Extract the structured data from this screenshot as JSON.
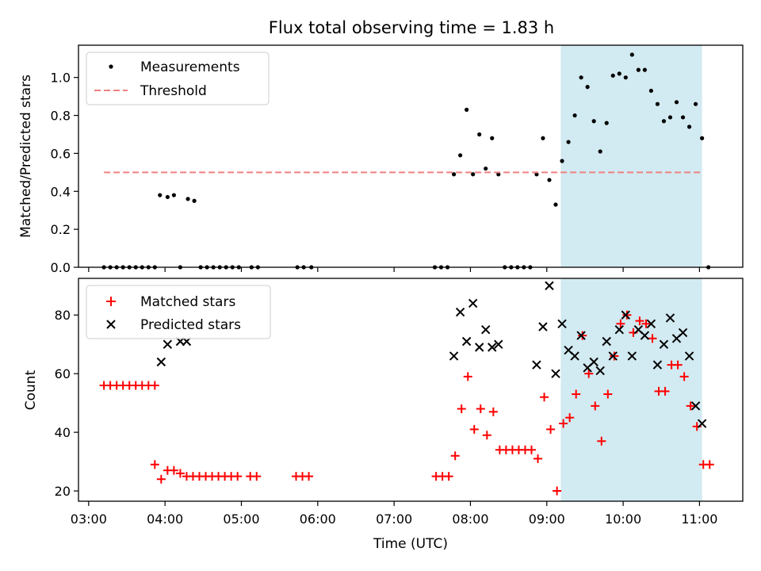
{
  "chart_data": [
    {
      "type": "scatter",
      "title": "Flux total observing time = 1.83 h",
      "xlabel": "",
      "ylabel": "Matched/Predicted stars",
      "xlim": [
        "02:52",
        "11:34"
      ],
      "ylim": [
        0,
        1.17
      ],
      "yticks": [
        "0.0",
        "0.2",
        "0.4",
        "0.6",
        "0.8",
        "1.0"
      ],
      "grid": false,
      "legend": "top-left",
      "highlight_span": [
        "09:11",
        "11:02"
      ],
      "series": [
        {
          "name": "Measurements",
          "marker": "dot",
          "color": "#000000",
          "points": [
            [
              "03:12",
              0
            ],
            [
              "03:17",
              0
            ],
            [
              "03:22",
              0
            ],
            [
              "03:27",
              0
            ],
            [
              "03:32",
              0
            ],
            [
              "03:37",
              0
            ],
            [
              "03:42",
              0
            ],
            [
              "03:47",
              0
            ],
            [
              "03:52",
              0
            ],
            [
              "03:56",
              0.38
            ],
            [
              "04:02",
              0.37
            ],
            [
              "04:07",
              0.38
            ],
            [
              "04:12",
              0
            ],
            [
              "04:18",
              0.36
            ],
            [
              "04:23",
              0.35
            ],
            [
              "04:28",
              0
            ],
            [
              "04:33",
              0
            ],
            [
              "04:38",
              0
            ],
            [
              "04:43",
              0
            ],
            [
              "04:48",
              0
            ],
            [
              "04:53",
              0
            ],
            [
              "04:58",
              0
            ],
            [
              "05:08",
              0
            ],
            [
              "05:13",
              0
            ],
            [
              "05:44",
              0
            ],
            [
              "05:49",
              0
            ],
            [
              "05:55",
              0
            ],
            [
              "07:32",
              0
            ],
            [
              "07:37",
              0
            ],
            [
              "07:42",
              0
            ],
            [
              "07:47",
              0.49
            ],
            [
              "07:52",
              0.59
            ],
            [
              "07:57",
              0.83
            ],
            [
              "08:02",
              0.49
            ],
            [
              "08:07",
              0.7
            ],
            [
              "08:12",
              0.52
            ],
            [
              "08:17",
              0.68
            ],
            [
              "08:22",
              0.49
            ],
            [
              "08:27",
              0
            ],
            [
              "08:32",
              0
            ],
            [
              "08:37",
              0
            ],
            [
              "08:42",
              0
            ],
            [
              "08:47",
              0
            ],
            [
              "08:52",
              0.49
            ],
            [
              "08:57",
              0.68
            ],
            [
              "09:02",
              0.46
            ],
            [
              "09:07",
              0.33
            ],
            [
              "09:12",
              0.56
            ],
            [
              "09:17",
              0.66
            ],
            [
              "09:22",
              0.8
            ],
            [
              "09:27",
              1.0
            ],
            [
              "09:32",
              0.95
            ],
            [
              "09:37",
              0.77
            ],
            [
              "09:42",
              0.61
            ],
            [
              "09:47",
              0.76
            ],
            [
              "09:52",
              1.01
            ],
            [
              "09:57",
              1.02
            ],
            [
              "10:02",
              1.0
            ],
            [
              "10:07",
              1.12
            ],
            [
              "10:12",
              1.04
            ],
            [
              "10:17",
              1.04
            ],
            [
              "10:22",
              0.93
            ],
            [
              "10:27",
              0.86
            ],
            [
              "10:32",
              0.77
            ],
            [
              "10:37",
              0.79
            ],
            [
              "10:42",
              0.87
            ],
            [
              "10:47",
              0.79
            ],
            [
              "10:52",
              0.74
            ],
            [
              "10:57",
              0.86
            ],
            [
              "11:02",
              0.68
            ],
            [
              "11:07",
              0
            ]
          ]
        },
        {
          "name": "Threshold",
          "marker": "dashed-line",
          "color": "#f08080",
          "points": [
            [
              "03:12",
              0.5
            ],
            [
              "11:02",
              0.5
            ]
          ]
        }
      ]
    },
    {
      "type": "scatter",
      "title": "",
      "xlabel": "Time (UTC)",
      "ylabel": "Count",
      "xlim": [
        "02:52",
        "11:34"
      ],
      "ylim": [
        16.5,
        92.5
      ],
      "xticks": [
        "03:00",
        "04:00",
        "05:00",
        "06:00",
        "07:00",
        "08:00",
        "09:00",
        "10:00",
        "11:00"
      ],
      "yticks": [
        "20",
        "40",
        "60",
        "80"
      ],
      "grid": false,
      "legend": "top-left",
      "highlight_span": [
        "09:11",
        "11:02"
      ],
      "series": [
        {
          "name": "Matched stars",
          "marker": "plus",
          "color": "#ff0000",
          "points": [
            [
              "03:12",
              56
            ],
            [
              "03:17",
              56
            ],
            [
              "03:22",
              56
            ],
            [
              "03:27",
              56
            ],
            [
              "03:32",
              56
            ],
            [
              "03:37",
              56
            ],
            [
              "03:42",
              56
            ],
            [
              "03:47",
              56
            ],
            [
              "03:52",
              56
            ],
            [
              "03:52",
              29
            ],
            [
              "03:57",
              24
            ],
            [
              "04:02",
              27
            ],
            [
              "04:07",
              27
            ],
            [
              "04:12",
              26
            ],
            [
              "04:17",
              25
            ],
            [
              "04:22",
              25
            ],
            [
              "04:27",
              25
            ],
            [
              "04:32",
              25
            ],
            [
              "04:37",
              25
            ],
            [
              "04:42",
              25
            ],
            [
              "04:47",
              25
            ],
            [
              "04:52",
              25
            ],
            [
              "04:57",
              25
            ],
            [
              "05:07",
              25
            ],
            [
              "05:12",
              25
            ],
            [
              "05:43",
              25
            ],
            [
              "05:48",
              25
            ],
            [
              "05:53",
              25
            ],
            [
              "07:33",
              25
            ],
            [
              "07:38",
              25
            ],
            [
              "07:43",
              25
            ],
            [
              "07:48",
              32
            ],
            [
              "07:53",
              48
            ],
            [
              "07:58",
              59
            ],
            [
              "08:03",
              41
            ],
            [
              "08:08",
              48
            ],
            [
              "08:13",
              39
            ],
            [
              "08:18",
              47
            ],
            [
              "08:23",
              34
            ],
            [
              "08:28",
              34
            ],
            [
              "08:33",
              34
            ],
            [
              "08:38",
              34
            ],
            [
              "08:43",
              34
            ],
            [
              "08:48",
              34
            ],
            [
              "08:53",
              31
            ],
            [
              "08:58",
              52
            ],
            [
              "09:03",
              41
            ],
            [
              "09:08",
              20
            ],
            [
              "09:13",
              43
            ],
            [
              "09:18",
              45
            ],
            [
              "09:23",
              53
            ],
            [
              "09:28",
              73
            ],
            [
              "09:33",
              60
            ],
            [
              "09:38",
              49
            ],
            [
              "09:43",
              37
            ],
            [
              "09:48",
              53
            ],
            [
              "09:53",
              66
            ],
            [
              "09:58",
              77
            ],
            [
              "10:03",
              80
            ],
            [
              "10:08",
              74
            ],
            [
              "10:13",
              78
            ],
            [
              "10:18",
              77
            ],
            [
              "10:23",
              72
            ],
            [
              "10:28",
              54
            ],
            [
              "10:33",
              54
            ],
            [
              "10:38",
              63
            ],
            [
              "10:43",
              63
            ],
            [
              "10:48",
              59
            ],
            [
              "10:53",
              49
            ],
            [
              "10:58",
              42
            ],
            [
              "11:03",
              29
            ],
            [
              "11:08",
              29
            ]
          ]
        },
        {
          "name": "Predicted stars",
          "marker": "x",
          "color": "#000000",
          "points": [
            [
              "03:57",
              64
            ],
            [
              "04:02",
              70
            ],
            [
              "04:12",
              71
            ],
            [
              "04:17",
              71
            ],
            [
              "07:47",
              66
            ],
            [
              "07:52",
              81
            ],
            [
              "07:57",
              71
            ],
            [
              "08:02",
              84
            ],
            [
              "08:07",
              69
            ],
            [
              "08:12",
              75
            ],
            [
              "08:17",
              69
            ],
            [
              "08:22",
              70
            ],
            [
              "08:52",
              63
            ],
            [
              "08:57",
              76
            ],
            [
              "09:02",
              90
            ],
            [
              "09:07",
              60
            ],
            [
              "09:12",
              77
            ],
            [
              "09:17",
              68
            ],
            [
              "09:22",
              66
            ],
            [
              "09:27",
              73
            ],
            [
              "09:32",
              62
            ],
            [
              "09:37",
              64
            ],
            [
              "09:42",
              61
            ],
            [
              "09:47",
              71
            ],
            [
              "09:52",
              66
            ],
            [
              "09:57",
              75
            ],
            [
              "10:02",
              80
            ],
            [
              "10:07",
              66
            ],
            [
              "10:12",
              75
            ],
            [
              "10:17",
              73
            ],
            [
              "10:22",
              77
            ],
            [
              "10:27",
              63
            ],
            [
              "10:32",
              70
            ],
            [
              "10:37",
              79
            ],
            [
              "10:42",
              72
            ],
            [
              "10:47",
              74
            ],
            [
              "10:52",
              66
            ],
            [
              "10:57",
              49
            ],
            [
              "11:02",
              43
            ]
          ]
        }
      ]
    }
  ]
}
